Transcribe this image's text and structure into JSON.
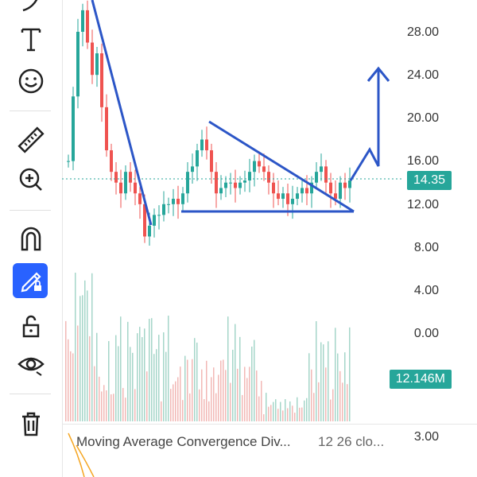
{
  "toolbar": {
    "tools": [
      {
        "name": "brush-icon"
      },
      {
        "name": "text-icon"
      },
      {
        "name": "smiley-icon"
      },
      {
        "name": "ruler-icon"
      },
      {
        "name": "zoom-in-icon"
      },
      {
        "name": "magnet-icon"
      },
      {
        "name": "draw-lock-icon",
        "active": true
      },
      {
        "name": "unlock-icon"
      },
      {
        "name": "eye-icon"
      },
      {
        "name": "trash-icon"
      }
    ],
    "active_color": "#2962ff"
  },
  "price_axis": {
    "labels": [
      "28.00",
      "24.00",
      "20.00",
      "16.00",
      "12.00",
      "8.00",
      "4.00",
      "0.00"
    ]
  },
  "current_price": {
    "value": "14.35",
    "color": "#26a69a"
  },
  "volume": {
    "value": "12.146M",
    "color": "#26a69a"
  },
  "macd": {
    "label": "Moving Average Convergence Div...",
    "params": "12 26 clo...",
    "axis_label": "3.00"
  },
  "colors": {
    "up": "#26a69a",
    "down": "#ef5350",
    "drawing": "#2c56c7"
  }
}
